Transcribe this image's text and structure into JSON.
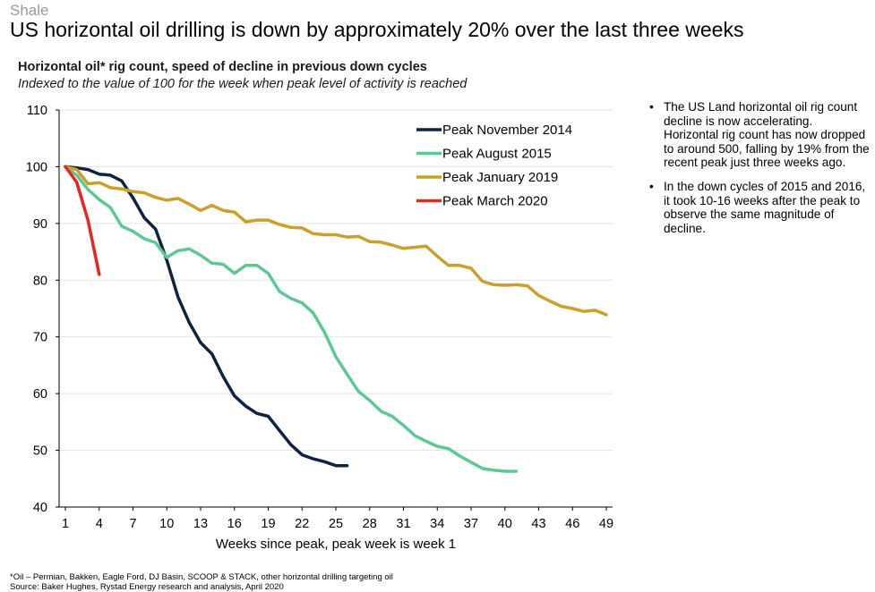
{
  "header": {
    "section": "Shale",
    "headline": "US horizontal oil drilling is down by approximately 20% over the last three weeks"
  },
  "bullets": [
    "The US Land horizontal oil rig count decline is now accelerating. Horizontal rig count has now dropped to around 500, falling by 19% from the recent peak just three weeks ago.",
    "In the down cycles of 2015 and 2016, it took 10-16 weeks after the peak to observe the same magnitude of decline."
  ],
  "footnote": "*Oil – Permian, Bakken, Eagle Ford, DJ Basin, SCOOP & STACK, other horizontal drilling targeting oil",
  "source": "Source: Baker Hughes, Rystad Energy research and analysis, April 2020",
  "chart_data": {
    "type": "line",
    "title": "Horizontal oil* rig count, speed of decline in previous down cycles",
    "subtitle": "Indexed to the value of 100 for the week when peak level of activity is reached",
    "xlabel": "Weeks since peak, peak week is week 1",
    "ylabel": "",
    "xlim": [
      1,
      49
    ],
    "ylim": [
      40,
      110
    ],
    "xticks": [
      1,
      4,
      7,
      10,
      13,
      16,
      19,
      22,
      25,
      28,
      31,
      34,
      37,
      40,
      43,
      46,
      49
    ],
    "yticks": [
      40,
      50,
      60,
      70,
      80,
      90,
      100,
      110
    ],
    "grid": "horizontal",
    "legend_position": "top-center",
    "series": [
      {
        "name": "Peak November 2014",
        "color": "#0d2340",
        "x": [
          1,
          2,
          3,
          4,
          5,
          6,
          7,
          8,
          9,
          10,
          11,
          12,
          13,
          14,
          15,
          16,
          17,
          18,
          19,
          20,
          21,
          22,
          23,
          24,
          25,
          26
        ],
        "values": [
          100,
          99.8,
          99.5,
          98.7,
          98.5,
          97.5,
          94.5,
          91,
          89,
          83.5,
          77,
          72.5,
          69,
          67,
          63,
          59.6,
          57.8,
          56.5,
          56,
          53.5,
          51,
          49.2,
          48.5,
          48,
          47.3,
          47.3
        ]
      },
      {
        "name": "Peak August 2015",
        "color": "#5dc894",
        "x": [
          1,
          2,
          3,
          4,
          5,
          6,
          7,
          8,
          9,
          10,
          11,
          12,
          13,
          14,
          15,
          16,
          17,
          18,
          19,
          20,
          21,
          22,
          23,
          24,
          25,
          26,
          27,
          28,
          29,
          30,
          31,
          32,
          33,
          34,
          35,
          36,
          37,
          38,
          39,
          40,
          41
        ],
        "values": [
          100,
          98.5,
          96,
          94.2,
          92.8,
          89.5,
          88.6,
          87.3,
          86.6,
          84,
          85.2,
          85.5,
          84.4,
          83,
          82.8,
          81.2,
          82.6,
          82.6,
          81.2,
          78,
          76.8,
          76,
          74.2,
          70.8,
          66.5,
          63.4,
          60.4,
          58.8,
          56.9,
          56,
          54.4,
          52.6,
          51.6,
          50.7,
          50.3,
          49,
          47.9,
          46.8,
          46.5,
          46.3,
          46.3
        ]
      },
      {
        "name": "Peak January 2019",
        "color": "#c9a12a",
        "x": [
          1,
          2,
          3,
          4,
          5,
          6,
          7,
          8,
          9,
          10,
          11,
          12,
          13,
          14,
          15,
          16,
          17,
          18,
          19,
          20,
          21,
          22,
          23,
          24,
          25,
          26,
          27,
          28,
          29,
          30,
          31,
          32,
          33,
          34,
          35,
          36,
          37,
          38,
          39,
          40,
          41,
          42,
          43,
          44,
          45,
          46,
          47,
          48,
          49
        ],
        "values": [
          100,
          99.5,
          97,
          97.2,
          96.3,
          96.1,
          95.6,
          95.4,
          94.6,
          94.1,
          94.4,
          93.4,
          92.3,
          93.2,
          92.3,
          92,
          90.3,
          90.6,
          90.6,
          89.8,
          89.3,
          89.2,
          88.2,
          88,
          88,
          87.6,
          87.7,
          86.8,
          86.7,
          86.2,
          85.6,
          85.8,
          86,
          84.2,
          82.6,
          82.6,
          82.1,
          79.8,
          79.2,
          79.1,
          79.2,
          79,
          77.3,
          76.3,
          75.4,
          75,
          74.5,
          74.7,
          73.9
        ]
      },
      {
        "name": "Peak March 2020",
        "color": "#e8251f",
        "x": [
          1,
          2,
          3,
          4
        ],
        "values": [
          100,
          97.3,
          90.6,
          81
        ]
      }
    ]
  }
}
